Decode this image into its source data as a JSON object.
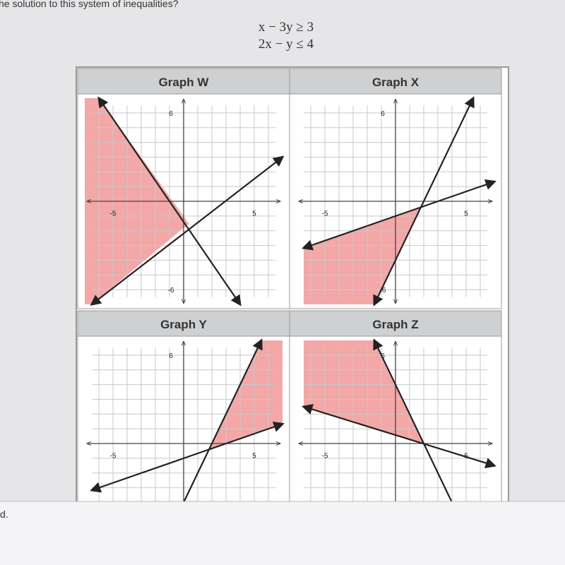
{
  "question": "he solution to this system of inequalities?",
  "inequalities": [
    "x − 3y ≥ 3",
    "2x − y ≤ 4"
  ],
  "graphs": [
    {
      "title": "Graph W",
      "labels": [
        "6",
        "-5",
        "5",
        "-6"
      ]
    },
    {
      "title": "Graph X",
      "labels": [
        "6",
        "-5",
        "5",
        "-6"
      ]
    },
    {
      "title": "Graph Y",
      "labels": [
        "6",
        "-5",
        "5"
      ]
    },
    {
      "title": "Graph Z",
      "labels": [
        "6",
        "-5",
        "5"
      ]
    }
  ],
  "footer": "d."
}
